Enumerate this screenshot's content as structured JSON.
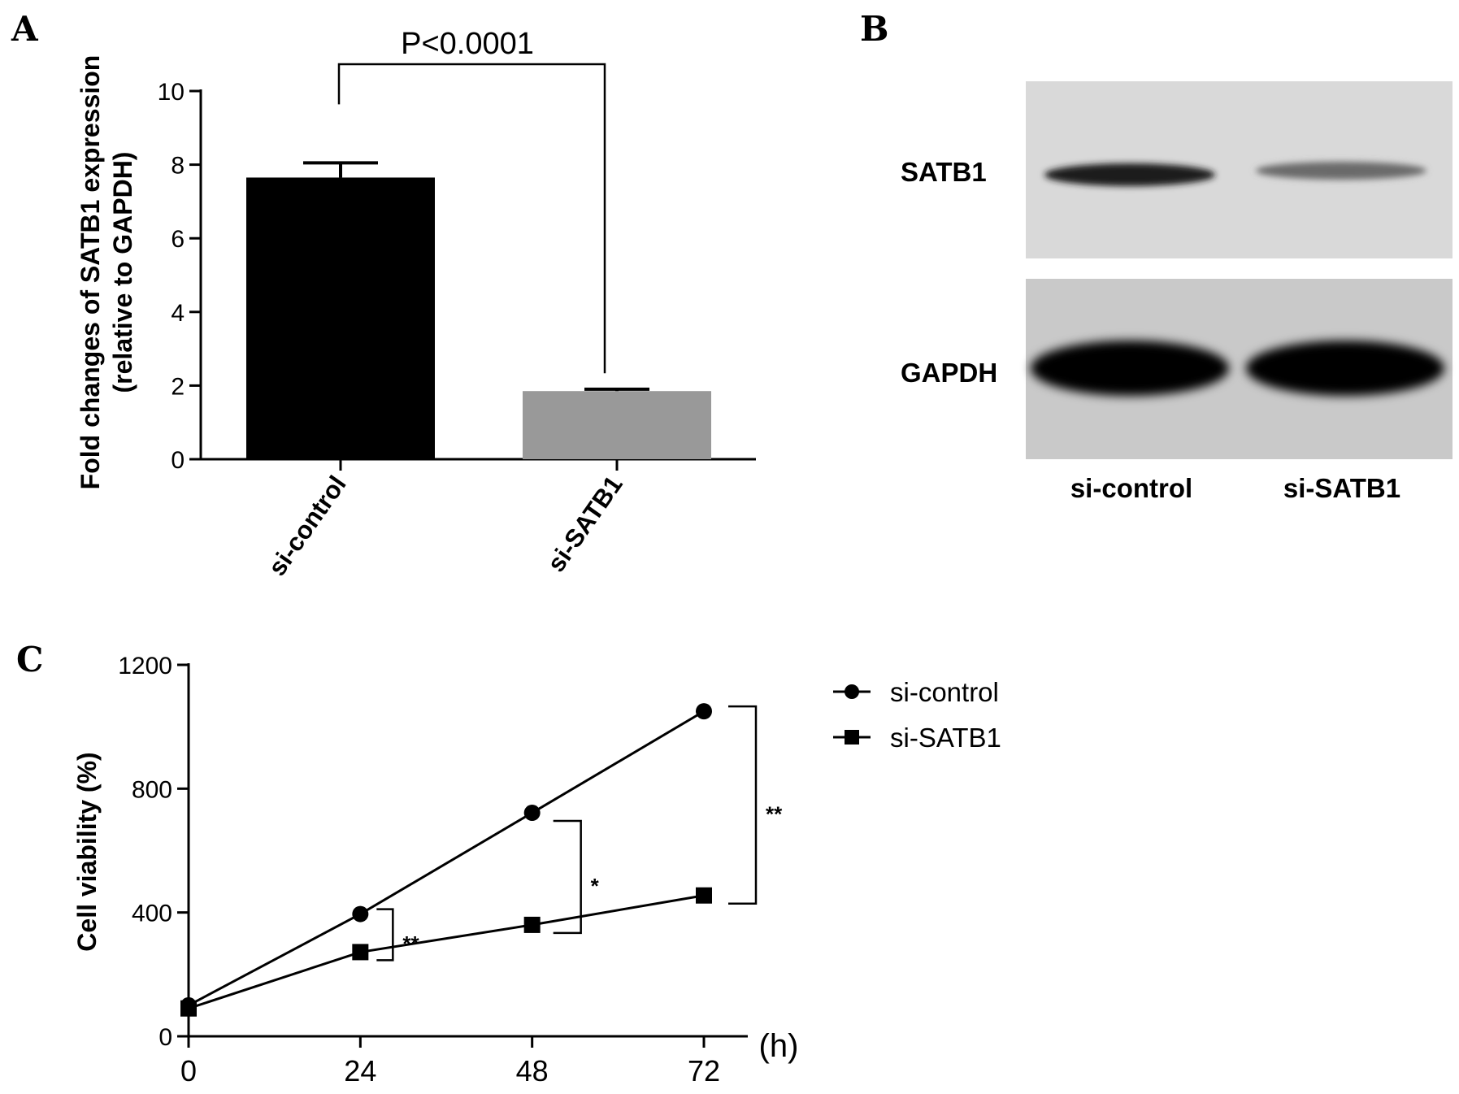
{
  "panel_labels": {
    "a": "A",
    "b": "B",
    "c": "C"
  },
  "chart_data": [
    {
      "panel": "A",
      "type": "bar",
      "categories": [
        "si-control",
        "si-SATB1"
      ],
      "values": [
        7.65,
        1.85
      ],
      "errors": [
        0.4,
        0.05
      ],
      "colors": [
        "#000000",
        "#999999"
      ],
      "ylabel_line1": "Fold changes of SATB1 expression",
      "ylabel_line2": "(relative to GAPDH)",
      "ylim": [
        0,
        10
      ],
      "yticks": [
        0,
        2,
        4,
        6,
        8,
        10
      ],
      "significance": "P<0.0001"
    },
    {
      "panel": "C",
      "type": "line",
      "x": [
        0,
        24,
        48,
        72
      ],
      "xticks": [
        0,
        24,
        48,
        72
      ],
      "xunit": "(h)",
      "ylabel": "Cell viability (%)",
      "ylim": [
        0,
        1200
      ],
      "yticks": [
        0,
        400,
        800,
        1200
      ],
      "series": [
        {
          "name": "si-control",
          "marker": "circle",
          "values": [
            100,
            395,
            722,
            1050
          ]
        },
        {
          "name": "si-SATB1",
          "marker": "square",
          "values": [
            90,
            272,
            360,
            455
          ]
        }
      ],
      "significance": [
        {
          "x": 24,
          "label": "**"
        },
        {
          "x": 48,
          "label": "*"
        },
        {
          "x": 72,
          "label": "**"
        }
      ],
      "legend_position": "top-right"
    }
  ],
  "blot": {
    "rows": [
      "SATB1",
      "GAPDH"
    ],
    "lanes": [
      "si-control",
      "si-SATB1"
    ]
  }
}
